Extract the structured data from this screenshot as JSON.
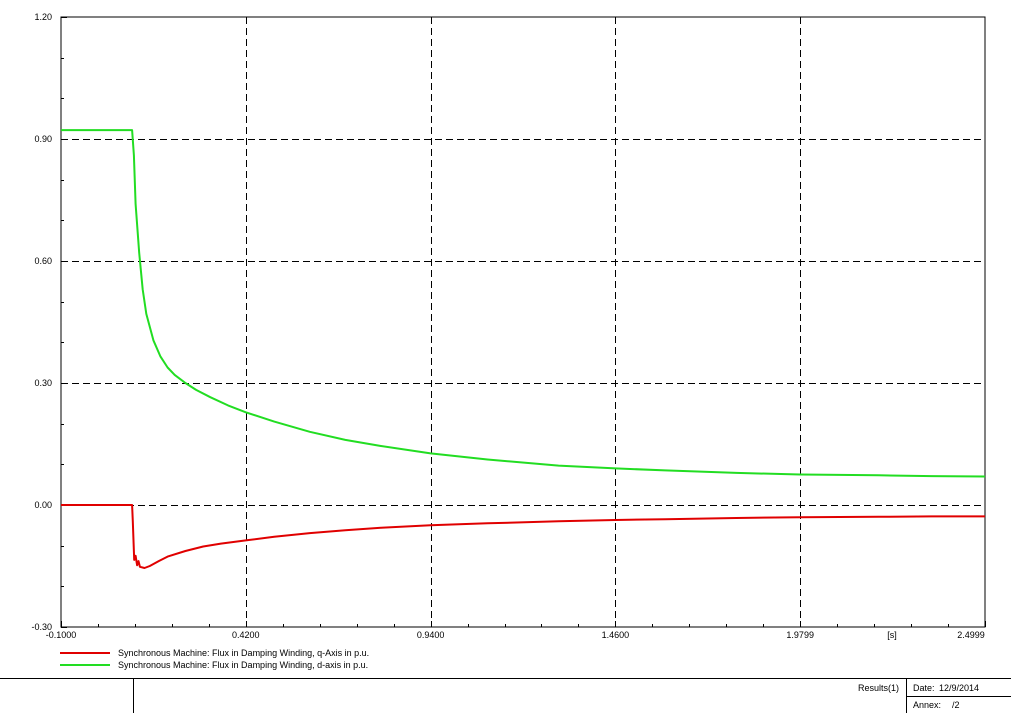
{
  "chart_data": {
    "type": "line",
    "xlim": [
      -0.1,
      2.4999
    ],
    "ylim": [
      -0.3,
      1.2
    ],
    "x_ticks": [
      "-0.1000",
      "0.4200",
      "0.9400",
      "1.4600",
      "1.9799",
      "2.4999"
    ],
    "x_tick_values": [
      -0.1,
      0.42,
      0.94,
      1.46,
      1.9799,
      2.4999
    ],
    "y_ticks": [
      "1.20",
      "0.90",
      "0.60",
      "0.30",
      "0.00",
      "-0.30"
    ],
    "y_tick_values": [
      1.2,
      0.9,
      0.6,
      0.3,
      0.0,
      -0.3
    ],
    "x_unit": "[s]",
    "grid": "dashed",
    "series": [
      {
        "name": "Synchronous Machine: Flux in Damping Winding, q-Axis in p.u.",
        "color": "#e00000",
        "x": [
          -0.1,
          0.1,
          0.102,
          0.106,
          0.11,
          0.114,
          0.118,
          0.122,
          0.135,
          0.15,
          0.175,
          0.2,
          0.25,
          0.3,
          0.35,
          0.42,
          0.5,
          0.6,
          0.7,
          0.8,
          0.94,
          1.1,
          1.3,
          1.46,
          1.6,
          1.8,
          1.98,
          2.2,
          2.35,
          2.4999
        ],
        "y": [
          0.0,
          0.0,
          -0.04,
          -0.135,
          -0.125,
          -0.148,
          -0.138,
          -0.152,
          -0.155,
          -0.15,
          -0.138,
          -0.127,
          -0.113,
          -0.102,
          -0.095,
          -0.087,
          -0.078,
          -0.069,
          -0.062,
          -0.056,
          -0.05,
          -0.045,
          -0.04,
          -0.037,
          -0.035,
          -0.032,
          -0.03,
          -0.029,
          -0.028,
          -0.028
        ]
      },
      {
        "name": "Synchronous Machine: Flux in Damping Winding, d-axis in p.u.",
        "color": "#22dd22",
        "x": [
          -0.1,
          0.1,
          0.105,
          0.11,
          0.12,
          0.13,
          0.14,
          0.16,
          0.18,
          0.2,
          0.22,
          0.25,
          0.28,
          0.32,
          0.37,
          0.42,
          0.5,
          0.6,
          0.7,
          0.8,
          0.94,
          1.1,
          1.3,
          1.46,
          1.6,
          1.8,
          1.98,
          2.2,
          2.35,
          2.4999
        ],
        "y": [
          0.922,
          0.922,
          0.86,
          0.74,
          0.62,
          0.53,
          0.47,
          0.405,
          0.365,
          0.338,
          0.32,
          0.3,
          0.283,
          0.265,
          0.245,
          0.228,
          0.205,
          0.18,
          0.16,
          0.145,
          0.127,
          0.112,
          0.097,
          0.09,
          0.085,
          0.079,
          0.075,
          0.073,
          0.071,
          0.07
        ]
      }
    ]
  },
  "footer": {
    "results": "Results(1)",
    "date_label": "Date:",
    "date_value": "12/9/2014",
    "annex_label": "Annex:",
    "annex_value": "/2"
  }
}
